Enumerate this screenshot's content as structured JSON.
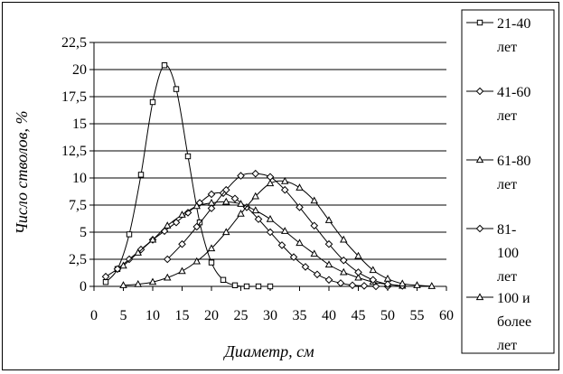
{
  "chart_data": {
    "type": "line",
    "title": "",
    "xlabel": "Диаметр, см",
    "ylabel": "Число стволов, %",
    "xlim": [
      0,
      60
    ],
    "ylim": [
      0,
      22.5
    ],
    "x_ticks": [
      "0",
      "5",
      "10",
      "15",
      "20",
      "25",
      "30",
      "35",
      "40",
      "45",
      "50",
      "55",
      "60"
    ],
    "y_ticks": [
      "0",
      "2,5",
      "5",
      "7,5",
      "10",
      "12,5",
      "15",
      "17,5",
      "20",
      "22,5"
    ],
    "grid": "horizontal",
    "legend_position": "right",
    "series": [
      {
        "name": "21-40 лет",
        "marker": "square",
        "x": [
          2,
          4,
          6,
          8,
          10,
          12,
          14,
          16,
          18,
          20,
          22,
          24,
          26,
          28,
          30
        ],
        "y": [
          0.4,
          1.6,
          4.8,
          10.3,
          17,
          20.4,
          18.2,
          12,
          5.9,
          2.2,
          0.6,
          0.1,
          0,
          0,
          0
        ]
      },
      {
        "name": "41-60 лет",
        "marker": "diamond",
        "x": [
          2,
          4,
          6,
          8,
          10,
          12,
          14,
          16,
          18,
          20,
          22,
          24,
          26,
          28,
          30,
          32,
          34,
          36,
          38,
          40,
          42,
          44,
          46,
          48,
          50
        ],
        "y": [
          0.9,
          1.6,
          2.5,
          3.4,
          4.3,
          5.1,
          5.9,
          6.8,
          7.7,
          8.5,
          8.6,
          8.1,
          7.3,
          6.2,
          5,
          3.8,
          2.7,
          1.8,
          1.1,
          0.6,
          0.3,
          0.1,
          0.05,
          0,
          0
        ]
      },
      {
        "name": "61-80 лет",
        "marker": "triangle",
        "x": [
          5,
          7.5,
          10,
          12.5,
          15,
          17.5,
          20,
          22.5,
          25,
          27.5,
          30,
          32.5,
          35,
          37.5,
          40,
          42.5,
          45,
          47.5,
          50,
          52.5
        ],
        "y": [
          1.9,
          3.1,
          4.3,
          5.6,
          6.6,
          7.4,
          7.7,
          7.8,
          7.6,
          7,
          6.2,
          5.1,
          4,
          3,
          2,
          1.3,
          0.8,
          0.4,
          0.2,
          0.05
        ]
      },
      {
        "name": "81-100 лет",
        "marker": "diamond",
        "x": [
          12.5,
          15,
          17.5,
          20,
          22.5,
          25,
          27.5,
          30,
          32.5,
          35,
          37.5,
          40,
          42.5,
          45,
          47.5,
          50,
          52.5
        ],
        "y": [
          2.5,
          3.9,
          5.5,
          7.2,
          8.9,
          10.2,
          10.4,
          10.1,
          8.9,
          7.3,
          5.6,
          3.9,
          2.4,
          1.3,
          0.6,
          0.2,
          0.05
        ]
      },
      {
        "name": "100 и более лет",
        "marker": "triangle",
        "x": [
          5,
          7.5,
          10,
          12.5,
          15,
          17.5,
          20,
          22.5,
          25,
          27.5,
          30,
          32.5,
          35,
          37.5,
          40,
          42.5,
          45,
          47.5,
          50,
          52.5,
          55,
          57.5
        ],
        "y": [
          0.1,
          0.2,
          0.4,
          0.8,
          1.4,
          2.3,
          3.5,
          5,
          6.7,
          8.3,
          9.5,
          9.7,
          9.1,
          7.9,
          6.1,
          4.3,
          2.8,
          1.5,
          0.7,
          0.25,
          0.1,
          0.02
        ]
      }
    ]
  }
}
